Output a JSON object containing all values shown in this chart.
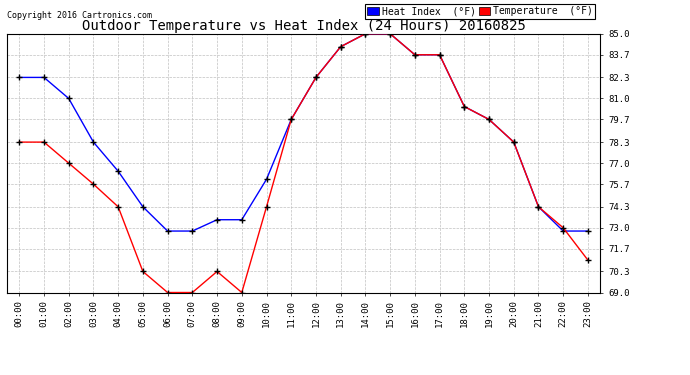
{
  "title": "Outdoor Temperature vs Heat Index (24 Hours) 20160825",
  "copyright": "Copyright 2016 Cartronics.com",
  "legend_heat": "Heat Index  (°F)",
  "legend_temp": "Temperature  (°F)",
  "hours": [
    "00:00",
    "01:00",
    "02:00",
    "03:00",
    "04:00",
    "05:00",
    "06:00",
    "07:00",
    "08:00",
    "09:00",
    "10:00",
    "11:00",
    "12:00",
    "13:00",
    "14:00",
    "15:00",
    "16:00",
    "17:00",
    "18:00",
    "19:00",
    "20:00",
    "21:00",
    "22:00",
    "23:00"
  ],
  "heat_index": [
    82.3,
    82.3,
    81.0,
    78.3,
    76.5,
    74.3,
    72.8,
    72.8,
    73.5,
    73.5,
    76.0,
    79.7,
    82.3,
    84.2,
    85.0,
    85.0,
    83.7,
    83.7,
    80.5,
    79.7,
    78.3,
    74.3,
    72.8,
    72.8
  ],
  "temperature": [
    78.3,
    78.3,
    77.0,
    75.7,
    74.3,
    70.3,
    69.0,
    69.0,
    70.3,
    69.0,
    74.3,
    79.7,
    82.3,
    84.2,
    85.0,
    85.0,
    83.7,
    83.7,
    80.5,
    79.7,
    78.3,
    74.3,
    73.0,
    71.0
  ],
  "ylim": [
    69.0,
    85.0
  ],
  "yticks": [
    69.0,
    70.3,
    71.7,
    73.0,
    74.3,
    75.7,
    77.0,
    78.3,
    79.7,
    81.0,
    82.3,
    83.7,
    85.0
  ],
  "heat_color": "#0000ff",
  "temp_color": "#ff0000",
  "grid_color": "#c0c0c0",
  "bg_color": "#ffffff",
  "title_fontsize": 10,
  "tick_fontsize": 6.5,
  "legend_fontsize": 7
}
